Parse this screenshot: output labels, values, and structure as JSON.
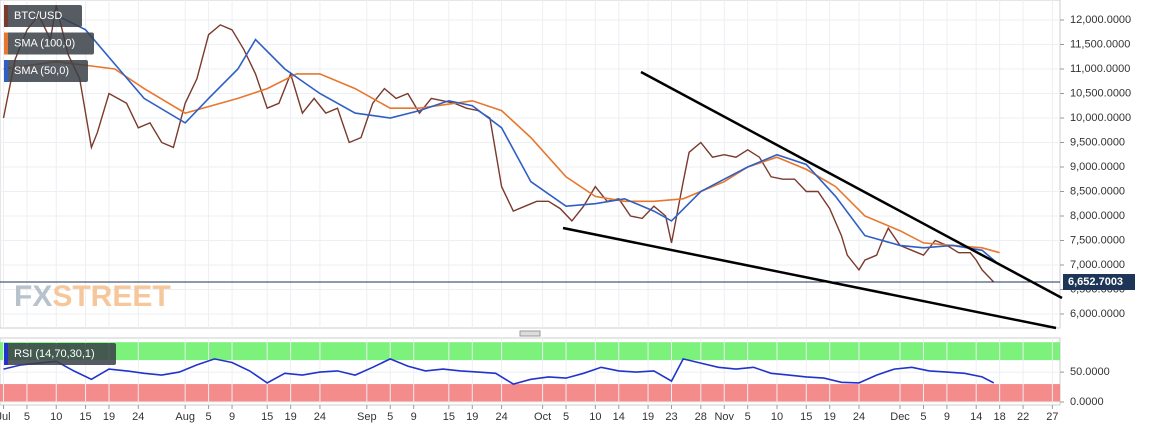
{
  "chart_data": [
    {
      "type": "line",
      "xlim": [
        0.4,
        181.3
      ],
      "ylim": [
        5714,
        12408
      ],
      "yticks": [
        {
          "value": 6000,
          "label": "6,000.0000"
        },
        {
          "value": 6500,
          "label": "6,500.0000"
        },
        {
          "value": 7000,
          "label": "7,000.0000"
        },
        {
          "value": 7500,
          "label": "7,500.0000"
        },
        {
          "value": 8000,
          "label": "8,000.0000"
        },
        {
          "value": 8500,
          "label": "8,500.0000"
        },
        {
          "value": 9000,
          "label": "9,000.0000"
        },
        {
          "value": 9500,
          "label": "9,500.0000"
        },
        {
          "value": 10000,
          "label": "10,000.0000"
        },
        {
          "value": 10500,
          "label": "10,500.0000"
        },
        {
          "value": 11000,
          "label": "11,000.0000"
        },
        {
          "value": 11500,
          "label": "11,500.0000"
        },
        {
          "value": 12000,
          "label": "12,000.0000"
        }
      ],
      "grid": true,
      "last_price": {
        "value": 6652.7003,
        "label": "6,652.7003"
      },
      "watermark": [
        "FX",
        "STREET"
      ],
      "series": [
        {
          "name": "BTC/USD",
          "color": "#7a3a2c",
          "x": [
            1,
            3,
            5,
            7,
            9,
            10,
            12,
            14,
            16,
            17,
            19,
            22,
            24,
            26,
            28,
            30,
            32,
            34,
            36,
            38,
            40,
            42,
            44,
            46,
            48,
            50,
            52,
            54,
            56,
            58,
            60,
            62,
            64,
            66,
            68,
            70,
            72,
            74,
            76,
            78,
            80,
            82,
            84,
            86,
            88,
            90,
            92,
            94,
            96,
            98,
            100,
            102,
            104,
            106,
            108,
            110,
            112,
            114,
            115,
            117,
            118,
            120,
            122,
            124,
            126,
            128,
            130,
            132,
            134,
            136,
            138,
            140,
            142,
            144,
            145,
            147,
            148,
            150,
            151,
            152,
            154,
            156,
            158,
            160,
            162,
            164,
            166,
            167,
            168,
            170
          ],
          "values": [
            10000,
            11200,
            11800,
            12100,
            11600,
            12300,
            11300,
            10800,
            9400,
            9700,
            10500,
            10300,
            9800,
            9900,
            9500,
            9400,
            10300,
            10800,
            11700,
            11900,
            11800,
            11400,
            10900,
            10200,
            10300,
            10900,
            10100,
            10400,
            10100,
            10200,
            9500,
            9600,
            10300,
            10600,
            10400,
            10500,
            10100,
            10400,
            10350,
            10300,
            10200,
            10150,
            10000,
            8600,
            8100,
            8200,
            8300,
            8300,
            8150,
            7900,
            8200,
            8600,
            8300,
            8350,
            8000,
            7950,
            8200,
            8000,
            7450,
            8700,
            9300,
            9500,
            9200,
            9250,
            9200,
            9350,
            9200,
            8800,
            8750,
            8750,
            8500,
            8500,
            8150,
            7600,
            7200,
            6900,
            7100,
            7200,
            7500,
            7750,
            7400,
            7300,
            7200,
            7500,
            7400,
            7250,
            7250,
            7100,
            6900,
            6650
          ]
        },
        {
          "name": "SMA (100,0)",
          "color": "#e8772e",
          "x": [
            1,
            10,
            20,
            25,
            32,
            41,
            46,
            51,
            55,
            61,
            67,
            72,
            81,
            86,
            91,
            97,
            102,
            107,
            112,
            117,
            124,
            128,
            133,
            138,
            143,
            148,
            154,
            158,
            163,
            168,
            171
          ],
          "values": [
            11000,
            11150,
            11000,
            10600,
            10100,
            10400,
            10600,
            10900,
            10900,
            10600,
            10200,
            10200,
            10350,
            10150,
            9600,
            8800,
            8400,
            8300,
            8300,
            8350,
            8700,
            9000,
            9200,
            8950,
            8600,
            8000,
            7700,
            7450,
            7400,
            7350,
            7250
          ]
        },
        {
          "name": "SMA (50,0)",
          "color": "#2f5fc4",
          "x": [
            10,
            15,
            20,
            25,
            32,
            36,
            41,
            44,
            49,
            55,
            61,
            67,
            72,
            77,
            81,
            86,
            91,
            97,
            102,
            107,
            112,
            115,
            120,
            124,
            128,
            133,
            138,
            143,
            148,
            154,
            158,
            163,
            168,
            171
          ],
          "values": [
            12100,
            11800,
            11100,
            10400,
            9900,
            10400,
            11000,
            11600,
            11000,
            10500,
            10100,
            10000,
            10150,
            10350,
            10250,
            9800,
            8700,
            8200,
            8250,
            8350,
            8100,
            7900,
            8500,
            8750,
            9000,
            9250,
            9050,
            8400,
            7600,
            7400,
            7350,
            7400,
            7300,
            7000
          ]
        }
      ]
    },
    {
      "type": "line",
      "xlim": [
        0.4,
        181.3
      ],
      "ylim": [
        -5,
        107
      ],
      "yticks": [
        {
          "value": 0,
          "label": "0.0000"
        },
        {
          "value": 50,
          "label": "50.0000"
        }
      ],
      "xticks": [
        {
          "value": 1,
          "label": "Jul"
        },
        {
          "value": 5,
          "label": "5"
        },
        {
          "value": 10,
          "label": "10"
        },
        {
          "value": 15,
          "label": "15"
        },
        {
          "value": 19,
          "label": "19"
        },
        {
          "value": 24,
          "label": "24"
        },
        {
          "value": 32,
          "label": "Aug"
        },
        {
          "value": 36,
          "label": "5"
        },
        {
          "value": 40,
          "label": "9"
        },
        {
          "value": 46,
          "label": "15"
        },
        {
          "value": 50,
          "label": "19"
        },
        {
          "value": 55,
          "label": "24"
        },
        {
          "value": 63,
          "label": "Sep"
        },
        {
          "value": 67,
          "label": "5"
        },
        {
          "value": 71,
          "label": "9"
        },
        {
          "value": 77,
          "label": "15"
        },
        {
          "value": 81,
          "label": "19"
        },
        {
          "value": 86,
          "label": "24"
        },
        {
          "value": 93,
          "label": "Oct"
        },
        {
          "value": 97,
          "label": "5"
        },
        {
          "value": 102,
          "label": "10"
        },
        {
          "value": 106,
          "label": "14"
        },
        {
          "value": 111,
          "label": "19"
        },
        {
          "value": 115,
          "label": "23"
        },
        {
          "value": 120,
          "label": "28"
        },
        {
          "value": 124,
          "label": "Nov"
        },
        {
          "value": 128,
          "label": "5"
        },
        {
          "value": 133,
          "label": "10"
        },
        {
          "value": 138,
          "label": "15"
        },
        {
          "value": 142,
          "label": "19"
        },
        {
          "value": 147,
          "label": "24"
        },
        {
          "value": 154,
          "label": "Dec"
        },
        {
          "value": 158,
          "label": "5"
        },
        {
          "value": 162,
          "label": "9"
        },
        {
          "value": 167,
          "label": "14"
        },
        {
          "value": 171,
          "label": "18"
        },
        {
          "value": 175,
          "label": "22"
        },
        {
          "value": 180,
          "label": "27"
        }
      ],
      "grid": true,
      "bands": [
        {
          "from": 70,
          "to": 100,
          "color": "#6ef06e"
        },
        {
          "from": 0,
          "to": 30,
          "color": "#f38080"
        }
      ],
      "series": [
        {
          "name": "RSI (14,70,30,1)",
          "color": "#2233cc",
          "x": [
            1,
            4,
            7,
            10,
            13,
            16,
            19,
            22,
            25,
            28,
            31,
            34,
            37,
            40,
            43,
            46,
            49,
            52,
            55,
            58,
            61,
            64,
            67,
            70,
            73,
            76,
            79,
            82,
            85,
            88,
            91,
            94,
            97,
            100,
            103,
            106,
            109,
            112,
            115,
            117,
            120,
            123,
            126,
            129,
            132,
            135,
            138,
            141,
            144,
            147,
            150,
            153,
            156,
            159,
            162,
            165,
            168,
            170
          ],
          "values": [
            55,
            62,
            65,
            68,
            52,
            38,
            55,
            52,
            48,
            45,
            50,
            62,
            72,
            66,
            52,
            32,
            48,
            45,
            50,
            52,
            45,
            58,
            72,
            60,
            52,
            55,
            52,
            50,
            48,
            30,
            38,
            42,
            40,
            48,
            58,
            52,
            50,
            52,
            35,
            72,
            65,
            58,
            55,
            58,
            48,
            45,
            42,
            40,
            33,
            32,
            45,
            55,
            58,
            52,
            50,
            48,
            42,
            32
          ]
        }
      ]
    }
  ]
}
